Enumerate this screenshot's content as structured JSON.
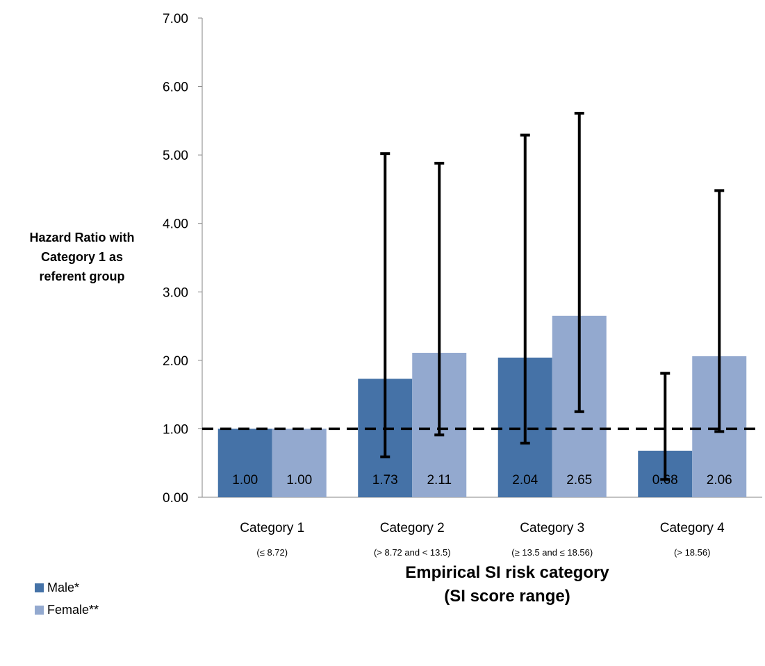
{
  "chart_data": {
    "type": "bar",
    "title": "",
    "ylabel": "Hazard Ratio with\nCategory 1 as\nreferent group",
    "xlabel": "Empirical SI risk category\n(SI score range)",
    "ylim": [
      0,
      7
    ],
    "yticks": [
      "0.00",
      "1.00",
      "2.00",
      "3.00",
      "4.00",
      "5.00",
      "6.00",
      "7.00"
    ],
    "categories": [
      "Category 1",
      "Category 2",
      "Category 3",
      "Category 4"
    ],
    "category_sublabels": [
      "(≤ 8.72)",
      "(> 8.72 and < 13.5)",
      "(≥  13.5 and ≤ 18.56)",
      "(> 18.56)"
    ],
    "reference_line": 1.0,
    "series": [
      {
        "name": "Male*",
        "color": "#4572a7",
        "values": [
          1.0,
          1.73,
          2.04,
          0.68
        ],
        "labels": [
          "1.00",
          "1.73",
          "2.04",
          "0.68"
        ],
        "error_low": [
          null,
          0.59,
          0.79,
          0.26
        ],
        "error_high": [
          null,
          5.02,
          5.29,
          1.81
        ]
      },
      {
        "name": "Female**",
        "color": "#93a9cf",
        "values": [
          1.0,
          2.11,
          2.65,
          2.06
        ],
        "labels": [
          "1.00",
          "2.11",
          "2.65",
          "2.06"
        ],
        "error_low": [
          null,
          0.91,
          1.25,
          0.96
        ],
        "error_high": [
          null,
          4.88,
          5.61,
          4.48
        ]
      }
    ],
    "legend_position": "bottom-left"
  }
}
